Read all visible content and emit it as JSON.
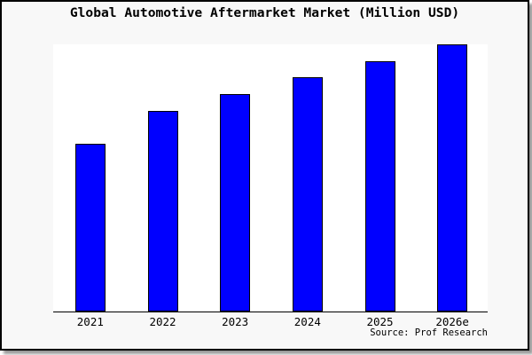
{
  "page": {
    "title": "Global Automotive Aftermarket Market (Million USD)",
    "source_label": "Source: Prof Research"
  },
  "chart_data": {
    "type": "bar",
    "title": "Global Automotive Aftermarket Market (Million USD)",
    "categories": [
      "2021",
      "2022",
      "2023",
      "2024",
      "2025",
      "2026e"
    ],
    "values": [
      189,
      226,
      245,
      264,
      282,
      301
    ],
    "value_note": "relative bar heights; chart shows no y-axis scale or value labels",
    "xlabel": "",
    "ylabel": "",
    "ylim": [
      0,
      301
    ],
    "y_axis_visible": false,
    "gridlines": false,
    "legend_position": "none",
    "annotations": [
      "Source: Prof Research"
    ],
    "bar_color": "#0000ff",
    "bar_border_color": "#000000"
  },
  "colors": {
    "card_bg": "#f8f8f8",
    "plot_bg": "#ffffff",
    "bar": "#0000ff",
    "border": "#000000",
    "text": "#000000",
    "shadow": "#9a9a9a"
  }
}
